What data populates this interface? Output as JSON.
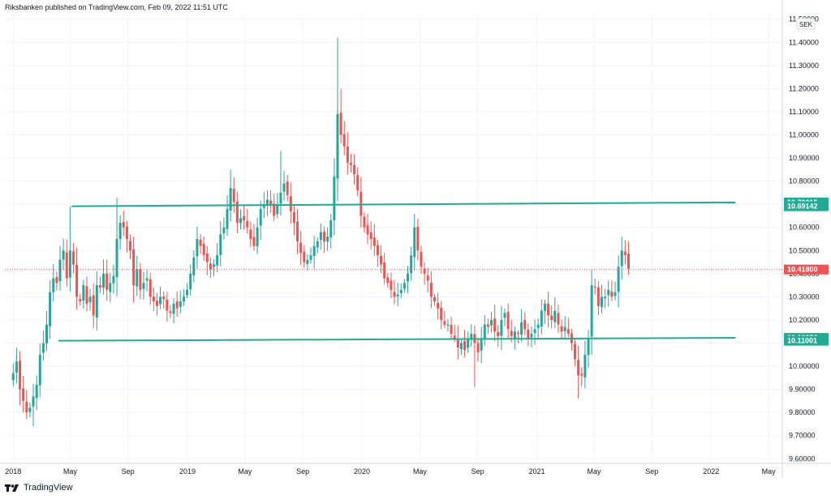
{
  "header": {
    "text": "Riksbanken published on TradingView.com, Feb 09, 2022 11:51 UTC"
  },
  "footer": {
    "brand": "TradingView",
    "logo_icon": "tradingview-logo-icon"
  },
  "colors": {
    "up": "#26a69a",
    "down": "#ef5350",
    "line": "#22ab94",
    "price_label": "#ef5350",
    "grid": "#f0f3fa",
    "axis_text": "#131722"
  },
  "chart_data": {
    "type": "candlestick",
    "currency": "SEK",
    "y_ticks": [
      "9.60000",
      "9.70000",
      "9.80000",
      "9.90000",
      "10.00000",
      "10.10000",
      "10.20000",
      "10.30000",
      "10.40000",
      "10.50000",
      "10.60000",
      "10.70000",
      "10.80000",
      "10.90000",
      "11.00000",
      "11.10000",
      "11.20000",
      "11.30000",
      "11.40000",
      "11.50000"
    ],
    "y_tick_values": [
      9.6,
      9.7,
      9.8,
      9.9,
      10.0,
      10.1,
      10.2,
      10.3,
      10.4,
      10.5,
      10.6,
      10.7,
      10.8,
      10.9,
      11.0,
      11.1,
      11.2,
      11.3,
      11.4,
      11.5
    ],
    "ylim": [
      9.58,
      11.52
    ],
    "x_ticks": [
      {
        "label": "2018",
        "t": 0.0
      },
      {
        "label": "May",
        "t": 17.0
      },
      {
        "label": "Sep",
        "t": 34.3
      },
      {
        "label": "2019",
        "t": 52.1
      },
      {
        "label": "May",
        "t": 69.3
      },
      {
        "label": "Sep",
        "t": 86.6
      },
      {
        "label": "2020",
        "t": 104.3
      },
      {
        "label": "May",
        "t": 121.6
      },
      {
        "label": "Sep",
        "t": 138.9
      },
      {
        "label": "2021",
        "t": 156.6
      },
      {
        "label": "May",
        "t": 173.7
      },
      {
        "label": "Sep",
        "t": 191.0
      },
      {
        "label": "2022",
        "t": 208.7
      },
      {
        "label": "May",
        "t": 225.9
      }
    ],
    "xlim": [
      -2.5,
      230
    ],
    "lines": [
      {
        "name": "resistance",
        "t1": 17.5,
        "v1": 10.6914,
        "t2": 216.0,
        "v2": 10.7082
      },
      {
        "name": "support",
        "t1": 13.5,
        "v1": 10.11,
        "t2": 216.0,
        "v2": 10.1226
      }
    ],
    "price_labels": [
      {
        "text": "10.70815",
        "value": 10.70815,
        "kind": "line"
      },
      {
        "text": "10.69142",
        "value": 10.69142,
        "kind": "line"
      },
      {
        "text": "10.41800",
        "value": 10.418,
        "kind": "last"
      },
      {
        "text": "10.12256",
        "value": 10.12256,
        "kind": "line"
      },
      {
        "text": "10.11001",
        "value": 10.11001,
        "kind": "line"
      }
    ],
    "last_price": 10.418,
    "anchors": [
      [
        0,
        9.97
      ],
      [
        1,
        10.02
      ],
      [
        2,
        9.9
      ],
      [
        3,
        9.85
      ],
      [
        4,
        9.8
      ],
      [
        5,
        9.82
      ],
      [
        6,
        9.87
      ],
      [
        7,
        9.92
      ],
      [
        8,
        10.05
      ],
      [
        9,
        10.1
      ],
      [
        10,
        10.18
      ],
      [
        11,
        10.32
      ],
      [
        12,
        10.38
      ],
      [
        13,
        10.36
      ],
      [
        14,
        10.46
      ],
      [
        15,
        10.5
      ],
      [
        16,
        10.38
      ],
      [
        17,
        10.5
      ],
      [
        18,
        10.44
      ],
      [
        19,
        10.3
      ],
      [
        20,
        10.28
      ],
      [
        21,
        10.35
      ],
      [
        22,
        10.27
      ],
      [
        23,
        10.3
      ],
      [
        24,
        10.22
      ],
      [
        25,
        10.35
      ],
      [
        26,
        10.34
      ],
      [
        27,
        10.4
      ],
      [
        28,
        10.33
      ],
      [
        29,
        10.36
      ],
      [
        30,
        10.39
      ],
      [
        31,
        10.55
      ],
      [
        32,
        10.62
      ],
      [
        33,
        10.6
      ],
      [
        34,
        10.55
      ],
      [
        35,
        10.5
      ],
      [
        36,
        10.35
      ],
      [
        37,
        10.42
      ],
      [
        38,
        10.33
      ],
      [
        39,
        10.36
      ],
      [
        40,
        10.38
      ],
      [
        41,
        10.3
      ],
      [
        42,
        10.28
      ],
      [
        43,
        10.26
      ],
      [
        44,
        10.3
      ],
      [
        45,
        10.29
      ],
      [
        46,
        10.24
      ],
      [
        47,
        10.23
      ],
      [
        48,
        10.27
      ],
      [
        49,
        10.25
      ],
      [
        50,
        10.28
      ],
      [
        51,
        10.3
      ],
      [
        52,
        10.33
      ],
      [
        53,
        10.4
      ],
      [
        54,
        10.47
      ],
      [
        55,
        10.55
      ],
      [
        56,
        10.52
      ],
      [
        57,
        10.48
      ],
      [
        58,
        10.45
      ],
      [
        59,
        10.42
      ],
      [
        60,
        10.44
      ],
      [
        61,
        10.48
      ],
      [
        62,
        10.57
      ],
      [
        63,
        10.6
      ],
      [
        64,
        10.68
      ],
      [
        65,
        10.77
      ],
      [
        66,
        10.71
      ],
      [
        67,
        10.62
      ],
      [
        68,
        10.64
      ],
      [
        69,
        10.63
      ],
      [
        70,
        10.6
      ],
      [
        71,
        10.55
      ],
      [
        72,
        10.52
      ],
      [
        73,
        10.6
      ],
      [
        74,
        10.68
      ],
      [
        75,
        10.7
      ],
      [
        76,
        10.72
      ],
      [
        77,
        10.7
      ],
      [
        78,
        10.65
      ],
      [
        79,
        10.7
      ],
      [
        80,
        10.75
      ],
      [
        81,
        10.79
      ],
      [
        82,
        10.74
      ],
      [
        83,
        10.67
      ],
      [
        84,
        10.62
      ],
      [
        85,
        10.54
      ],
      [
        86,
        10.49
      ],
      [
        87,
        10.45
      ],
      [
        88,
        10.46
      ],
      [
        89,
        10.48
      ],
      [
        90,
        10.52
      ],
      [
        91,
        10.54
      ],
      [
        92,
        10.58
      ],
      [
        93,
        10.54
      ],
      [
        94,
        10.56
      ],
      [
        95,
        10.63
      ],
      [
        96,
        10.82
      ],
      [
        97,
        11.09
      ],
      [
        98,
        11.0
      ],
      [
        99,
        10.95
      ],
      [
        100,
        10.88
      ],
      [
        101,
        10.87
      ],
      [
        102,
        10.83
      ],
      [
        103,
        10.76
      ],
      [
        104,
        10.65
      ],
      [
        105,
        10.6
      ],
      [
        106,
        10.57
      ],
      [
        107,
        10.55
      ],
      [
        108,
        10.52
      ],
      [
        109,
        10.48
      ],
      [
        110,
        10.44
      ],
      [
        111,
        10.38
      ],
      [
        112,
        10.36
      ],
      [
        113,
        10.33
      ],
      [
        114,
        10.3
      ],
      [
        115,
        10.31
      ],
      [
        116,
        10.33
      ],
      [
        117,
        10.36
      ],
      [
        118,
        10.4
      ],
      [
        119,
        10.48
      ],
      [
        120,
        10.6
      ],
      [
        121,
        10.5
      ],
      [
        122,
        10.43
      ],
      [
        123,
        10.4
      ],
      [
        124,
        10.37
      ],
      [
        125,
        10.3
      ],
      [
        126,
        10.28
      ],
      [
        127,
        10.25
      ],
      [
        128,
        10.2
      ],
      [
        129,
        10.18
      ],
      [
        130,
        10.18
      ],
      [
        131,
        10.14
      ],
      [
        132,
        10.12
      ],
      [
        133,
        10.08
      ],
      [
        134,
        10.1
      ],
      [
        135,
        10.07
      ],
      [
        136,
        10.12
      ],
      [
        137,
        10.14
      ],
      [
        138,
        10.1
      ],
      [
        139,
        10.06
      ],
      [
        140,
        10.12
      ],
      [
        141,
        10.18
      ],
      [
        142,
        10.17
      ],
      [
        143,
        10.2
      ],
      [
        144,
        10.15
      ],
      [
        145,
        10.13
      ],
      [
        146,
        10.2
      ],
      [
        147,
        10.23
      ],
      [
        148,
        10.16
      ],
      [
        149,
        10.13
      ],
      [
        150,
        10.15
      ],
      [
        151,
        10.14
      ],
      [
        152,
        10.19
      ],
      [
        153,
        10.16
      ],
      [
        154,
        10.12
      ],
      [
        155,
        10.14
      ],
      [
        156,
        10.16
      ],
      [
        157,
        10.18
      ],
      [
        158,
        10.24
      ],
      [
        159,
        10.27
      ],
      [
        160,
        10.22
      ],
      [
        161,
        10.2
      ],
      [
        162,
        10.24
      ],
      [
        163,
        10.18
      ],
      [
        164,
        10.15
      ],
      [
        165,
        10.17
      ],
      [
        166,
        10.14
      ],
      [
        167,
        10.1
      ],
      [
        168,
        10.03
      ],
      [
        169,
        9.96
      ],
      [
        170,
        9.96
      ],
      [
        171,
        10.05
      ],
      [
        172,
        10.12
      ],
      [
        173,
        10.35
      ],
      [
        174,
        10.34
      ],
      [
        175,
        10.26
      ],
      [
        176,
        10.3
      ],
      [
        177,
        10.3
      ],
      [
        178,
        10.33
      ],
      [
        179,
        10.3
      ],
      [
        180,
        10.32
      ],
      [
        181,
        10.43
      ],
      [
        182,
        10.5
      ],
      [
        183,
        10.48
      ],
      [
        184,
        10.42
      ]
    ]
  }
}
